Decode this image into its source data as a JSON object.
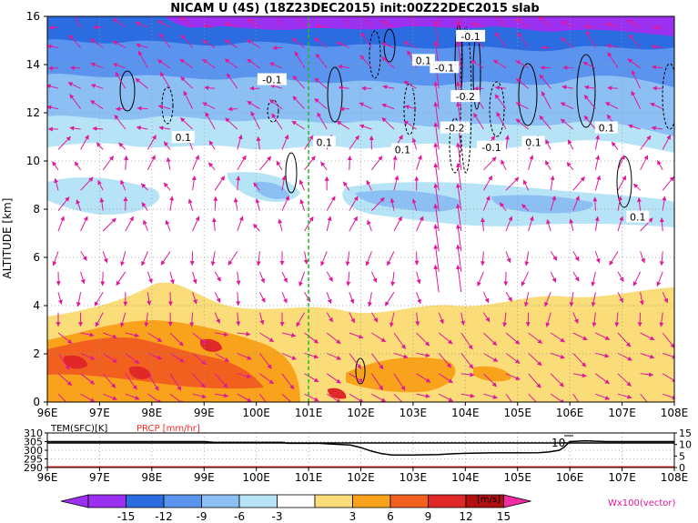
{
  "title": "NICAM U (4S) (18Z23DEC2015) init:00Z22DEC2015 slab",
  "colors": {
    "c_m15": "#9b30f0",
    "c_m12": "#2b6ce0",
    "c_m9": "#5a94ee",
    "c_m6": "#8cc0f4",
    "c_m3": "#b6e4f6",
    "c_0": "#ffffff",
    "c_3": "#fadc78",
    "c_6": "#f9a21c",
    "c_9": "#f26020",
    "c_12": "#e02828",
    "c_15": "#b01010",
    "c_over": "#f02ca0",
    "vector": "#e0189a",
    "marker_line": "#22bb22",
    "temp_line": "#000000",
    "prcp_line": "#ff2a2a"
  },
  "chart_data": [
    {
      "type": "heatmap",
      "title": "NICAM U (4S) (18Z23DEC2015) init:00Z22DEC2015 slab",
      "xlabel": "",
      "ylabel": "ALTITUDE [km]",
      "x_ticks": [
        "96E",
        "97E",
        "98E",
        "99E",
        "100E",
        "101E",
        "102E",
        "103E",
        "104E",
        "105E",
        "106E",
        "107E",
        "108E"
      ],
      "xlim": [
        96,
        108
      ],
      "y_ticks": [
        "0",
        "2",
        "4",
        "6",
        "8",
        "10",
        "12",
        "14",
        "16"
      ],
      "ylim": [
        0,
        16
      ],
      "grid": true,
      "marker_x": 101,
      "contour_labels": [
        {
          "text": "-0.1",
          "x": 104.1,
          "y": 15.1
        },
        {
          "text": "0.1",
          "x": 103.2,
          "y": 14.1
        },
        {
          "text": "-0.1",
          "x": 103.6,
          "y": 13.8
        },
        {
          "text": "-0.1",
          "x": 100.3,
          "y": 13.3
        },
        {
          "text": "-0.2",
          "x": 104.0,
          "y": 12.6
        },
        {
          "text": "0.1",
          "x": 98.6,
          "y": 10.9
        },
        {
          "text": "0.1",
          "x": 101.3,
          "y": 10.7
        },
        {
          "text": "-0.2",
          "x": 103.8,
          "y": 11.3
        },
        {
          "text": "0.1",
          "x": 102.8,
          "y": 10.4
        },
        {
          "text": "-0.1",
          "x": 104.5,
          "y": 10.5
        },
        {
          "text": "0.1",
          "x": 105.3,
          "y": 10.7
        },
        {
          "text": "0.1",
          "x": 106.7,
          "y": 11.3
        },
        {
          "text": "0.1",
          "x": 107.3,
          "y": 7.6
        }
      ]
    },
    {
      "type": "line",
      "labels": [
        "TEM(SFC)[K]",
        "PRCP [mm/hr]"
      ],
      "x_ticks": [
        "96E",
        "97E",
        "98E",
        "99E",
        "100E",
        "101E",
        "102E",
        "103E",
        "104E",
        "105E",
        "106E",
        "107E",
        "108E"
      ],
      "xlim": [
        96,
        108
      ],
      "left_ticks": [
        "310",
        "305",
        "300",
        "295",
        "290"
      ],
      "left_ylim": [
        290,
        310
      ],
      "right_ticks": [
        "15",
        "10",
        "5",
        "0"
      ],
      "right_ylim": [
        0,
        15
      ],
      "peak_label": "10",
      "series": [
        {
          "name": "TEM(SFC)[K]",
          "x": [
            96,
            96.5,
            97,
            97.5,
            98,
            98.5,
            99,
            99.2,
            99.5,
            100,
            100.5,
            100.6,
            101,
            101.2,
            101.5,
            101.8,
            102,
            102.2,
            102.4,
            102.6,
            103,
            103.5,
            103.8,
            104,
            104.5,
            105,
            105.4,
            105.6,
            105.8,
            105.9,
            106,
            106.3,
            106.7,
            107,
            107.5,
            108
          ],
          "values": [
            305,
            305,
            305,
            305,
            305,
            305,
            305,
            304.5,
            304.5,
            304.5,
            304.5,
            304,
            304,
            304,
            303.5,
            303,
            301.5,
            299.5,
            298,
            297.2,
            297.2,
            297.5,
            298,
            298.2,
            298.5,
            298.5,
            298.6,
            299,
            300,
            302,
            305,
            305.5,
            305,
            305,
            305,
            305
          ]
        }
      ]
    }
  ],
  "colorbar": {
    "ticks": [
      "-15",
      "-12",
      "-9",
      "-6",
      "-3",
      "3",
      "6",
      "9",
      "12",
      "15"
    ],
    "unit": "[m/s]",
    "vector_note": "Wx100(vector)"
  }
}
